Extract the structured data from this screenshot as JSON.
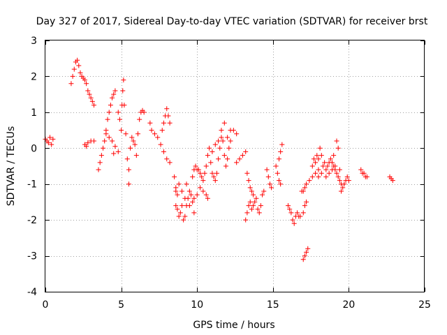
{
  "chart_data": {
    "type": "scatter",
    "title": "Day 327 of 2017, Sidereal Day-to-day VTEC variation (SDTVAR) for receiver brst",
    "xlabel": "GPS time / hours",
    "ylabel": "SDTVAR / TECUs",
    "xlim": [
      0,
      25
    ],
    "ylim": [
      -4,
      3
    ],
    "x_ticks": [
      0,
      5,
      10,
      15,
      20,
      25
    ],
    "y_ticks": [
      -4,
      -3,
      -2,
      -1,
      0,
      1,
      2,
      3
    ],
    "grid": true,
    "legend": "none",
    "marker": "+",
    "color": "#ff0000",
    "series": [
      {
        "points": [
          [
            0.0,
            0.25
          ],
          [
            0.1,
            0.2
          ],
          [
            0.2,
            0.15
          ],
          [
            0.3,
            0.3
          ],
          [
            0.4,
            0.1
          ],
          [
            0.5,
            0.25
          ],
          [
            1.7,
            1.8
          ],
          [
            1.8,
            2.0
          ],
          [
            1.9,
            2.2
          ],
          [
            2.0,
            2.4
          ],
          [
            2.1,
            2.45
          ],
          [
            2.2,
            2.3
          ],
          [
            2.3,
            2.1
          ],
          [
            2.4,
            2.0
          ],
          [
            2.5,
            1.95
          ],
          [
            2.6,
            1.9
          ],
          [
            2.7,
            1.8
          ],
          [
            2.8,
            1.6
          ],
          [
            2.9,
            1.5
          ],
          [
            3.0,
            1.4
          ],
          [
            3.1,
            1.3
          ],
          [
            3.2,
            1.2
          ],
          [
            2.6,
            0.1
          ],
          [
            2.7,
            0.05
          ],
          [
            2.8,
            0.15
          ],
          [
            3.0,
            0.2
          ],
          [
            3.2,
            0.2
          ],
          [
            3.5,
            -0.6
          ],
          [
            3.6,
            -0.4
          ],
          [
            3.7,
            -0.2
          ],
          [
            3.8,
            0.0
          ],
          [
            3.9,
            0.2
          ],
          [
            4.0,
            0.5
          ],
          [
            4.1,
            0.8
          ],
          [
            4.2,
            1.0
          ],
          [
            4.3,
            1.2
          ],
          [
            4.4,
            1.4
          ],
          [
            4.5,
            1.5
          ],
          [
            4.6,
            1.6
          ],
          [
            4.0,
            0.4
          ],
          [
            4.2,
            0.3
          ],
          [
            4.4,
            0.2
          ],
          [
            4.6,
            0.05
          ],
          [
            4.8,
            -0.1
          ],
          [
            4.5,
            -0.15
          ],
          [
            4.8,
            1.0
          ],
          [
            4.9,
            0.8
          ],
          [
            5.0,
            0.5
          ],
          [
            5.05,
            1.2
          ],
          [
            5.1,
            1.6
          ],
          [
            5.15,
            1.9
          ],
          [
            5.2,
            1.2
          ],
          [
            5.3,
            0.4
          ],
          [
            5.4,
            -0.3
          ],
          [
            5.5,
            -0.6
          ],
          [
            5.5,
            -1.0
          ],
          [
            5.6,
            0.0
          ],
          [
            5.7,
            0.3
          ],
          [
            5.8,
            0.2
          ],
          [
            5.9,
            0.1
          ],
          [
            6.0,
            -0.2
          ],
          [
            6.1,
            0.4
          ],
          [
            6.2,
            0.8
          ],
          [
            6.3,
            1.0
          ],
          [
            6.4,
            1.05
          ],
          [
            6.5,
            1.0
          ],
          [
            6.9,
            0.7
          ],
          [
            7.0,
            0.5
          ],
          [
            7.2,
            0.4
          ],
          [
            7.4,
            0.3
          ],
          [
            7.6,
            0.1
          ],
          [
            7.8,
            -0.1
          ],
          [
            8.0,
            -0.3
          ],
          [
            8.2,
            -0.4
          ],
          [
            7.7,
            0.5
          ],
          [
            7.8,
            0.7
          ],
          [
            7.9,
            0.9
          ],
          [
            8.0,
            1.1
          ],
          [
            8.1,
            0.9
          ],
          [
            8.2,
            0.7
          ],
          [
            8.5,
            -0.8
          ],
          [
            8.6,
            -1.1
          ],
          [
            8.7,
            -1.3
          ],
          [
            8.6,
            -1.6
          ],
          [
            8.7,
            -1.7
          ],
          [
            8.8,
            -1.9
          ],
          [
            8.9,
            -1.8
          ],
          [
            9.0,
            -1.6
          ],
          [
            9.1,
            -2.0
          ],
          [
            9.2,
            -1.9
          ],
          [
            9.3,
            -1.6
          ],
          [
            9.4,
            -1.4
          ],
          [
            9.5,
            -1.2
          ],
          [
            9.3,
            -1.0
          ],
          [
            9.6,
            -1.3
          ],
          [
            9.7,
            -1.5
          ],
          [
            9.8,
            -1.4
          ],
          [
            9.7,
            -0.8
          ],
          [
            9.8,
            -0.6
          ],
          [
            9.9,
            -0.5
          ],
          [
            10.0,
            -0.6
          ],
          [
            8.6,
            -1.2
          ],
          [
            8.8,
            -1.0
          ],
          [
            9.0,
            -1.2
          ],
          [
            9.2,
            -1.4
          ],
          [
            9.5,
            -1.6
          ],
          [
            9.8,
            -1.8
          ],
          [
            10.0,
            -1.3
          ],
          [
            10.2,
            -1.1
          ],
          [
            10.4,
            -1.2
          ],
          [
            10.6,
            -1.3
          ],
          [
            10.7,
            -1.4
          ],
          [
            10.1,
            -0.6
          ],
          [
            10.2,
            -0.7
          ],
          [
            10.3,
            -0.8
          ],
          [
            10.4,
            -0.9
          ],
          [
            10.5,
            -0.7
          ],
          [
            10.6,
            -0.5
          ],
          [
            10.7,
            -0.2
          ],
          [
            10.8,
            0.0
          ],
          [
            10.9,
            -0.4
          ],
          [
            11.0,
            -0.7
          ],
          [
            11.1,
            -0.8
          ],
          [
            11.2,
            -0.9
          ],
          [
            11.3,
            -0.7
          ],
          [
            11.4,
            -0.3
          ],
          [
            11.5,
            0.0
          ],
          [
            11.6,
            0.3
          ],
          [
            11.7,
            0.2
          ],
          [
            11.8,
            -0.2
          ],
          [
            11.9,
            -0.5
          ],
          [
            12.0,
            -0.3
          ],
          [
            12.1,
            0.0
          ],
          [
            12.2,
            0.2
          ],
          [
            11.0,
            -0.1
          ],
          [
            11.2,
            0.1
          ],
          [
            11.4,
            0.2
          ],
          [
            11.6,
            0.5
          ],
          [
            11.8,
            0.7
          ],
          [
            12.0,
            0.3
          ],
          [
            12.2,
            0.5
          ],
          [
            12.4,
            0.5
          ],
          [
            12.6,
            0.4
          ],
          [
            12.6,
            -0.4
          ],
          [
            12.8,
            -0.3
          ],
          [
            13.0,
            -0.2
          ],
          [
            13.2,
            -0.1
          ],
          [
            13.2,
            -2.0
          ],
          [
            13.3,
            -1.8
          ],
          [
            13.4,
            -1.6
          ],
          [
            13.5,
            -1.5
          ],
          [
            13.6,
            -1.7
          ],
          [
            13.7,
            -1.6
          ],
          [
            13.8,
            -1.5
          ],
          [
            13.9,
            -1.4
          ],
          [
            14.0,
            -1.7
          ],
          [
            14.1,
            -1.8
          ],
          [
            14.2,
            -1.6
          ],
          [
            14.3,
            -1.3
          ],
          [
            14.4,
            -1.2
          ],
          [
            13.3,
            -0.7
          ],
          [
            13.4,
            -0.9
          ],
          [
            13.5,
            -1.1
          ],
          [
            13.6,
            -1.2
          ],
          [
            13.7,
            -1.3
          ],
          [
            14.6,
            -0.6
          ],
          [
            14.7,
            -0.8
          ],
          [
            14.8,
            -1.0
          ],
          [
            14.9,
            -1.1
          ],
          [
            15.2,
            -0.5
          ],
          [
            15.3,
            -0.7
          ],
          [
            15.4,
            -0.9
          ],
          [
            15.5,
            -1.0
          ],
          [
            15.4,
            -0.3
          ],
          [
            15.5,
            -0.1
          ],
          [
            15.6,
            0.1
          ],
          [
            16.0,
            -1.6
          ],
          [
            16.1,
            -1.7
          ],
          [
            16.2,
            -1.8
          ],
          [
            16.3,
            -2.0
          ],
          [
            16.4,
            -2.1
          ],
          [
            16.5,
            -1.9
          ],
          [
            16.6,
            -1.8
          ],
          [
            16.7,
            -1.9
          ],
          [
            16.8,
            -1.9
          ],
          [
            17.0,
            -1.8
          ],
          [
            17.1,
            -1.6
          ],
          [
            17.2,
            -1.5
          ],
          [
            16.9,
            -1.2
          ],
          [
            17.0,
            -1.2
          ],
          [
            17.1,
            -1.1
          ],
          [
            17.2,
            -1.0
          ],
          [
            17.4,
            -0.9
          ],
          [
            17.6,
            -0.8
          ],
          [
            17.8,
            -0.7
          ],
          [
            18.0,
            -0.8
          ],
          [
            17.0,
            -3.1
          ],
          [
            17.1,
            -3.0
          ],
          [
            17.2,
            -2.9
          ],
          [
            17.3,
            -2.8
          ],
          [
            17.6,
            -0.5
          ],
          [
            17.7,
            -0.3
          ],
          [
            17.8,
            -0.4
          ],
          [
            17.9,
            -0.2
          ],
          [
            18.0,
            -0.3
          ],
          [
            18.1,
            0.0
          ],
          [
            18.2,
            -0.2
          ],
          [
            18.3,
            -0.5
          ],
          [
            18.4,
            -0.4
          ],
          [
            18.5,
            -0.6
          ],
          [
            18.6,
            -0.5
          ],
          [
            18.7,
            -0.4
          ],
          [
            18.8,
            -0.3
          ],
          [
            18.9,
            -0.4
          ],
          [
            19.0,
            -0.5
          ],
          [
            19.1,
            -0.6
          ],
          [
            19.2,
            -0.7
          ],
          [
            19.3,
            -0.8
          ],
          [
            19.4,
            -0.9
          ],
          [
            19.5,
            -1.0
          ],
          [
            19.6,
            -1.1
          ],
          [
            19.7,
            -1.0
          ],
          [
            19.8,
            -0.9
          ],
          [
            19.9,
            -0.8
          ],
          [
            20.0,
            -0.9
          ],
          [
            18.5,
            -0.8
          ],
          [
            18.7,
            -0.7
          ],
          [
            18.9,
            -0.6
          ],
          [
            19.1,
            -0.5
          ],
          [
            19.3,
            0.0
          ],
          [
            19.2,
            0.2
          ],
          [
            19.4,
            -0.6
          ],
          [
            19.5,
            -1.2
          ],
          [
            19.0,
            -0.2
          ],
          [
            18.2,
            -0.7
          ],
          [
            18.0,
            -0.6
          ],
          [
            20.8,
            -0.6
          ],
          [
            20.9,
            -0.7
          ],
          [
            21.0,
            -0.7
          ],
          [
            21.1,
            -0.8
          ],
          [
            21.2,
            -0.8
          ],
          [
            22.7,
            -0.8
          ],
          [
            22.8,
            -0.85
          ],
          [
            22.9,
            -0.9
          ]
        ]
      }
    ]
  }
}
